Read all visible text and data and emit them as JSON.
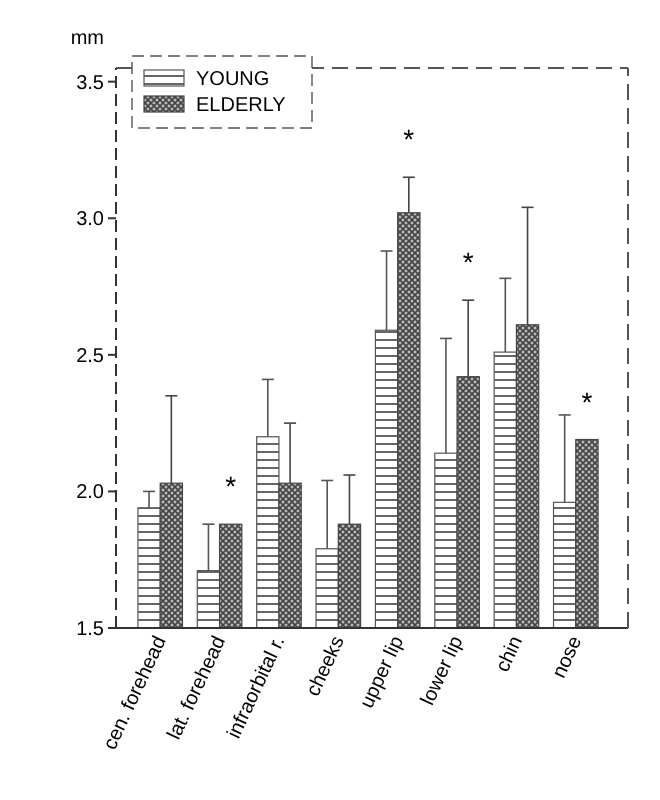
{
  "chart_data": {
    "type": "bar",
    "ylabel": "mm",
    "categories": [
      "cen. forehead",
      "lat. forehead",
      "infraorbital r.",
      "cheeks",
      "upper lip",
      "lower lip",
      "chin",
      "nose"
    ],
    "series": [
      {
        "name": "YOUNG",
        "color": "#555555",
        "values": [
          1.94,
          1.71,
          2.2,
          1.79,
          2.59,
          2.14,
          2.51,
          1.96
        ],
        "errors": [
          [
            1.94,
            2.0
          ],
          [
            1.71,
            1.88
          ],
          [
            2.2,
            2.41
          ],
          [
            1.79,
            2.04
          ],
          [
            2.59,
            2.88
          ],
          [
            2.14,
            2.56
          ],
          [
            2.51,
            2.78
          ],
          [
            1.96,
            2.28
          ]
        ]
      },
      {
        "name": "ELDERLY",
        "color": "#444444",
        "values": [
          2.03,
          1.88,
          2.03,
          1.88,
          3.02,
          2.42,
          2.61,
          2.19
        ],
        "errors": [
          [
            2.03,
            2.35
          ],
          null,
          [
            2.03,
            2.25
          ],
          [
            1.88,
            2.06
          ],
          [
            3.02,
            3.15
          ],
          [
            2.42,
            2.7
          ],
          [
            2.61,
            3.04
          ],
          null
        ]
      }
    ],
    "ylim": [
      1.5,
      3.55
    ],
    "yticks": [
      {
        "value": 1.5,
        "label": "1.5"
      },
      {
        "value": 2,
        "label": "2.0"
      },
      {
        "value": 2.5,
        "label": "2.5"
      },
      {
        "value": 3,
        "label": "3.0"
      },
      {
        "value": 3.5,
        "label": "3.5"
      }
    ],
    "annotations": [
      {
        "text": "*",
        "x": "lat. forehead",
        "y": 1.88
      },
      {
        "text": "*",
        "x": "upper lip",
        "y": 3.15
      },
      {
        "text": "*",
        "x": "lower lip",
        "y": 2.7
      },
      {
        "text": "*",
        "x": "nose",
        "y": 2.19
      }
    ],
    "legend": "top left",
    "grid": false
  }
}
